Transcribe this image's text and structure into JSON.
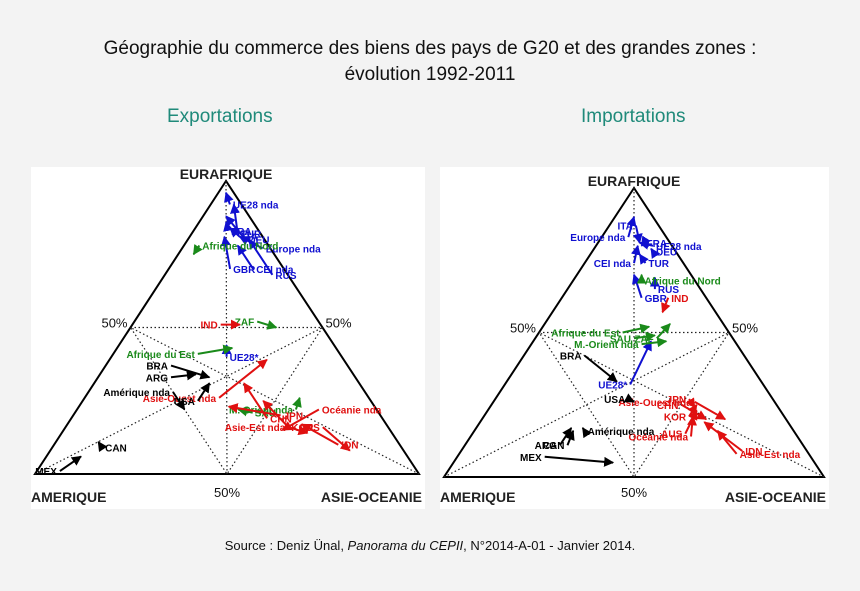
{
  "title_line1": "Géographie du commerce des biens des pays de G20 et des grandes zones :",
  "title_line2": "évolution 1992-2011",
  "source": {
    "prefix": "Source : Deniz Ünal, ",
    "journal": "Panorama du CEPII",
    "suffix": ", N°2014-A-01 - Janvier 2014."
  },
  "colors": {
    "europe": "#1010d0",
    "africa": "#1a8a1a",
    "america": "#000000",
    "asia": "#e01010",
    "subtitle": "#1f8a7a"
  },
  "chart_data": [
    {
      "type": "ternary-arrows",
      "subtitle": "Exportations",
      "vertex_labels": {
        "top": "EURAFRIQUE",
        "left": "AMERIQUE",
        "right": "ASIE-OCEANIE"
      },
      "midpoint_labels": {
        "left": "50%",
        "right": "50%",
        "bottom": "50%"
      },
      "arrows": [
        {
          "label": "UE28  nda",
          "group": "europe",
          "from": [
            0.92,
            0.03,
            0.05
          ],
          "to": [
            0.96,
            0.02,
            0.02
          ]
        },
        {
          "label": "TUR",
          "group": "europe",
          "from": [
            0.82,
            0.06,
            0.12
          ],
          "to": [
            0.92,
            0.02,
            0.06
          ]
        },
        {
          "label": "DEU",
          "group": "europe",
          "from": [
            0.8,
            0.05,
            0.15
          ],
          "to": [
            0.88,
            0.06,
            0.06
          ]
        },
        {
          "label": "FRA",
          "group": "europe",
          "from": [
            0.83,
            0.08,
            0.09
          ],
          "to": [
            0.86,
            0.07,
            0.07
          ]
        },
        {
          "label": "ITA",
          "group": "europe",
          "from": [
            0.81,
            0.06,
            0.13
          ],
          "to": [
            0.84,
            0.07,
            0.09
          ]
        },
        {
          "label": "GBR",
          "group": "europe",
          "from": [
            0.7,
            0.14,
            0.16
          ],
          "to": [
            0.81,
            0.1,
            0.09
          ]
        },
        {
          "label": "CEI nda",
          "group": "europe",
          "from": [
            0.7,
            0.08,
            0.22
          ],
          "to": [
            0.78,
            0.08,
            0.14
          ]
        },
        {
          "label": "Europe nda",
          "group": "europe",
          "from": [
            0.77,
            0.02,
            0.21
          ],
          "to": [
            0.81,
            0.06,
            0.13
          ]
        },
        {
          "label": "RUS",
          "group": "europe",
          "from": [
            0.68,
            0.04,
            0.28
          ],
          "to": [
            0.8,
            0.04,
            0.16
          ]
        },
        {
          "label": "UE28*",
          "group": "europe",
          "from": [
            0.4,
            0.3,
            0.3
          ],
          "to": [
            0.44,
            0.28,
            0.28
          ]
        },
        {
          "label": "Afrique du Nord",
          "group": "africa",
          "from": [
            0.78,
            0.18,
            0.04
          ],
          "to": [
            0.75,
            0.21,
            0.04
          ]
        },
        {
          "label": "Afrique du Est",
          "group": "africa",
          "from": [
            0.41,
            0.37,
            0.22
          ],
          "to": [
            0.43,
            0.27,
            0.3
          ]
        },
        {
          "label": "ZAF",
          "group": "africa",
          "from": [
            0.52,
            0.16,
            0.32
          ],
          "to": [
            0.5,
            0.12,
            0.38
          ]
        },
        {
          "label": "SAU",
          "group": "africa",
          "from": [
            0.21,
            0.33,
            0.46
          ],
          "to": [
            0.22,
            0.36,
            0.42
          ]
        },
        {
          "label": "M. Orient nda",
          "group": "africa",
          "from": [
            0.22,
            0.21,
            0.57
          ],
          "to": [
            0.26,
            0.18,
            0.56
          ]
        },
        {
          "label": "IND",
          "group": "asia",
          "from": [
            0.51,
            0.26,
            0.23
          ],
          "to": [
            0.51,
            0.21,
            0.28
          ]
        },
        {
          "label": "Asie-Ouest nda",
          "group": "asia",
          "from": [
            0.26,
            0.39,
            0.35
          ],
          "to": [
            0.39,
            0.2,
            0.41
          ]
        },
        {
          "label": "CHN",
          "group": "asia",
          "from": [
            0.19,
            0.3,
            0.51
          ],
          "to": [
            0.31,
            0.3,
            0.39
          ]
        },
        {
          "label": "JPN",
          "group": "asia",
          "from": [
            0.2,
            0.26,
            0.54
          ],
          "to": [
            0.23,
            0.38,
            0.39
          ]
        },
        {
          "label": "KOR",
          "group": "asia",
          "from": [
            0.16,
            0.26,
            0.58
          ],
          "to": [
            0.25,
            0.28,
            0.47
          ]
        },
        {
          "label": "Océanie nda",
          "group": "asia",
          "from": [
            0.22,
            0.15,
            0.63
          ],
          "to": [
            0.15,
            0.28,
            0.57
          ]
        },
        {
          "label": "IDN",
          "group": "asia",
          "from": [
            0.1,
            0.16,
            0.74
          ],
          "to": [
            0.17,
            0.22,
            0.61
          ]
        },
        {
          "label": "Asie-Est nda",
          "group": "asia",
          "from": [
            0.16,
            0.26,
            0.58
          ],
          "to": [
            0.14,
            0.22,
            0.64
          ]
        },
        {
          "label": "AUS",
          "group": "asia",
          "from": [
            0.16,
            0.17,
            0.67
          ],
          "to": [
            0.08,
            0.14,
            0.78
          ]
        },
        {
          "label": "BRA",
          "group": "america",
          "from": [
            0.37,
            0.46,
            0.17
          ],
          "to": [
            0.33,
            0.38,
            0.29
          ]
        },
        {
          "label": "ARG",
          "group": "america",
          "from": [
            0.33,
            0.48,
            0.19
          ],
          "to": [
            0.34,
            0.41,
            0.25
          ]
        },
        {
          "label": "USA",
          "group": "america",
          "from": [
            0.25,
            0.45,
            0.3
          ],
          "to": [
            0.31,
            0.39,
            0.3
          ]
        },
        {
          "label": "Amérique nda",
          "group": "america",
          "from": [
            0.28,
            0.5,
            0.22
          ],
          "to": [
            0.22,
            0.5,
            0.28
          ]
        },
        {
          "label": "CAN",
          "group": "america",
          "from": [
            0.09,
            0.78,
            0.13
          ],
          "to": [
            0.11,
            0.78,
            0.11
          ]
        },
        {
          "label": "MEX",
          "group": "america",
          "from": [
            0.01,
            0.93,
            0.06
          ],
          "to": [
            0.06,
            0.85,
            0.09
          ]
        }
      ]
    },
    {
      "type": "ternary-arrows",
      "subtitle": "Importations",
      "vertex_labels": {
        "top": "EURAFRIQUE",
        "left": "AMERIQUE",
        "right": "ASIE-OCEANIE"
      },
      "midpoint_labels": {
        "left": "50%",
        "right": "50%",
        "bottom": "50%"
      },
      "arrows": [
        {
          "label": "Europe nda",
          "group": "europe",
          "from": [
            0.83,
            0.1,
            0.07
          ],
          "to": [
            0.9,
            0.05,
            0.05
          ]
        },
        {
          "label": "ITA",
          "group": "europe",
          "from": [
            0.87,
            0.06,
            0.07
          ],
          "to": [
            0.81,
            0.08,
            0.11
          ]
        },
        {
          "label": "UE28  nda",
          "group": "europe",
          "from": [
            0.8,
            0.05,
            0.15
          ],
          "to": [
            0.81,
            0.08,
            0.11
          ]
        },
        {
          "label": "FRA",
          "group": "europe",
          "from": [
            0.81,
            0.07,
            0.12
          ],
          "to": [
            0.8,
            0.08,
            0.12
          ]
        },
        {
          "label": "CEI nda",
          "group": "europe",
          "from": [
            0.74,
            0.13,
            0.13
          ],
          "to": [
            0.8,
            0.09,
            0.11
          ]
        },
        {
          "label": "DEU",
          "group": "europe",
          "from": [
            0.78,
            0.06,
            0.16
          ],
          "to": [
            0.79,
            0.06,
            0.15
          ]
        },
        {
          "label": "TUR",
          "group": "europe",
          "from": [
            0.74,
            0.1,
            0.16
          ],
          "to": [
            0.77,
            0.1,
            0.13
          ]
        },
        {
          "label": "RUS",
          "group": "europe",
          "from": [
            0.65,
            0.12,
            0.23
          ],
          "to": [
            0.69,
            0.1,
            0.21
          ]
        },
        {
          "label": "GBR",
          "group": "europe",
          "from": [
            0.62,
            0.17,
            0.21
          ],
          "to": [
            0.7,
            0.15,
            0.15
          ]
        },
        {
          "label": "UE28*",
          "group": "europe",
          "from": [
            0.32,
            0.35,
            0.33
          ],
          "to": [
            0.47,
            0.22,
            0.31
          ]
        },
        {
          "label": "Afrique du Nord",
          "group": "africa",
          "from": [
            0.68,
            0.14,
            0.18
          ],
          "to": [
            0.7,
            0.13,
            0.17
          ]
        },
        {
          "label": "Afrique du Est",
          "group": "africa",
          "from": [
            0.5,
            0.28,
            0.22
          ],
          "to": [
            0.52,
            0.2,
            0.28
          ]
        },
        {
          "label": "ZAF",
          "group": "africa",
          "from": [
            0.48,
            0.2,
            0.32
          ],
          "to": [
            0.53,
            0.14,
            0.33
          ]
        },
        {
          "label": "SAU",
          "group": "africa",
          "from": [
            0.48,
            0.26,
            0.26
          ],
          "to": [
            0.49,
            0.2,
            0.31
          ]
        },
        {
          "label": "M.-Orient nda",
          "group": "africa",
          "from": [
            0.46,
            0.25,
            0.29
          ],
          "to": [
            0.47,
            0.18,
            0.35
          ]
        },
        {
          "label": "IND",
          "group": "asia",
          "from": [
            0.62,
            0.1,
            0.28
          ],
          "to": [
            0.57,
            0.14,
            0.29
          ]
        },
        {
          "label": "CHN",
          "group": "asia",
          "from": [
            0.25,
            0.25,
            0.5
          ],
          "to": [
            0.2,
            0.21,
            0.59
          ]
        },
        {
          "label": "JPN",
          "group": "asia",
          "from": [
            0.27,
            0.22,
            0.51
          ],
          "to": [
            0.24,
            0.22,
            0.54
          ]
        },
        {
          "label": "KOR",
          "group": "asia",
          "from": [
            0.21,
            0.25,
            0.54
          ],
          "to": [
            0.25,
            0.21,
            0.54
          ]
        },
        {
          "label": "AUS",
          "group": "asia",
          "from": [
            0.15,
            0.29,
            0.56
          ],
          "to": [
            0.23,
            0.22,
            0.55
          ]
        },
        {
          "label": "Asie-Ouest nda",
          "group": "asia",
          "from": [
            0.26,
            0.21,
            0.53
          ],
          "to": [
            0.2,
            0.16,
            0.64
          ]
        },
        {
          "label": "Océanie nda",
          "group": "asia",
          "from": [
            0.14,
            0.28,
            0.58
          ],
          "to": [
            0.21,
            0.24,
            0.55
          ]
        },
        {
          "label": "Asie-Est nda",
          "group": "asia",
          "from": [
            0.08,
            0.19,
            0.73
          ],
          "to": [
            0.16,
            0.2,
            0.64
          ]
        },
        {
          "label": "IDN",
          "group": "asia",
          "from": [
            0.09,
            0.17,
            0.74
          ],
          "to": [
            0.19,
            0.22,
            0.59
          ]
        },
        {
          "label": "BRA",
          "group": "america",
          "from": [
            0.42,
            0.42,
            0.16
          ],
          "to": [
            0.33,
            0.38,
            0.29
          ]
        },
        {
          "label": "USA",
          "group": "america",
          "from": [
            0.27,
            0.38,
            0.35
          ],
          "to": [
            0.26,
            0.37,
            0.37
          ]
        },
        {
          "label": "Amérique nda",
          "group": "america",
          "from": [
            0.16,
            0.55,
            0.29
          ],
          "to": [
            0.17,
            0.55,
            0.28
          ]
        },
        {
          "label": "ARG",
          "group": "america",
          "from": [
            0.11,
            0.64,
            0.25
          ],
          "to": [
            0.17,
            0.58,
            0.25
          ]
        },
        {
          "label": "CAN",
          "group": "america",
          "from": [
            0.11,
            0.62,
            0.27
          ],
          "to": [
            0.16,
            0.58,
            0.26
          ]
        },
        {
          "label": "MEX",
          "group": "america",
          "from": [
            0.07,
            0.7,
            0.23
          ],
          "to": [
            0.05,
            0.53,
            0.42
          ]
        }
      ]
    }
  ]
}
